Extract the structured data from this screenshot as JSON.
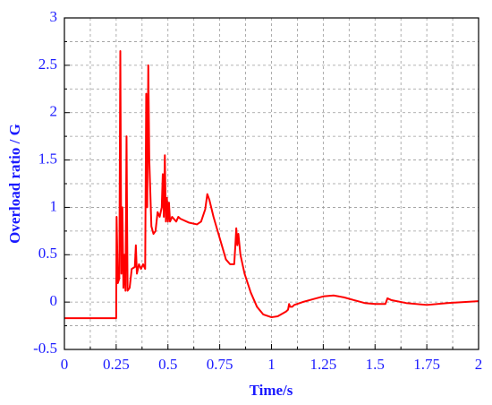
{
  "chart_data": {
    "type": "line",
    "x_label": "Time/s",
    "y_label": "Overload ratio / G",
    "xlim": [
      0,
      2
    ],
    "ylim": [
      -0.5,
      3
    ],
    "xticks": [
      0,
      0.25,
      0.5,
      0.75,
      1,
      1.25,
      1.5,
      1.75,
      2
    ],
    "yticks": [
      -0.5,
      0,
      0.5,
      1,
      1.5,
      2,
      2.5,
      3
    ],
    "grid": true,
    "series": [
      {
        "color": "#ff0000",
        "x": [
          0,
          0.25,
          0.252,
          0.258,
          0.265,
          0.27,
          0.275,
          0.28,
          0.285,
          0.29,
          0.295,
          0.3,
          0.305,
          0.315,
          0.325,
          0.34,
          0.345,
          0.35,
          0.36,
          0.37,
          0.38,
          0.39,
          0.395,
          0.4,
          0.405,
          0.41,
          0.42,
          0.43,
          0.44,
          0.45,
          0.46,
          0.47,
          0.475,
          0.48,
          0.485,
          0.49,
          0.495,
          0.5,
          0.505,
          0.51,
          0.52,
          0.54,
          0.55,
          0.56,
          0.6,
          0.64,
          0.66,
          0.68,
          0.69,
          0.7,
          0.72,
          0.74,
          0.76,
          0.78,
          0.8,
          0.82,
          0.825,
          0.83,
          0.835,
          0.84,
          0.85,
          0.87,
          0.9,
          0.93,
          0.96,
          1.0,
          1.03,
          1.07,
          1.08,
          1.085,
          1.09,
          1.1,
          1.11,
          1.15,
          1.2,
          1.25,
          1.3,
          1.35,
          1.4,
          1.45,
          1.5,
          1.55,
          1.56,
          1.58,
          1.65,
          1.75,
          1.85,
          2.0
        ],
        "values": [
          -0.17,
          -0.17,
          0.9,
          0.2,
          0.25,
          2.65,
          0.3,
          1.0,
          0.15,
          0.5,
          0.12,
          1.75,
          0.12,
          0.15,
          0.35,
          0.37,
          0.6,
          0.3,
          0.4,
          0.35,
          0.4,
          0.35,
          2.2,
          1.0,
          2.5,
          1.5,
          0.8,
          0.72,
          0.75,
          0.95,
          0.9,
          1.0,
          1.35,
          0.9,
          1.55,
          0.85,
          1.1,
          0.85,
          1.05,
          0.85,
          0.9,
          0.85,
          0.9,
          0.88,
          0.84,
          0.82,
          0.85,
          0.98,
          1.14,
          1.08,
          0.9,
          0.75,
          0.6,
          0.45,
          0.4,
          0.4,
          0.58,
          0.78,
          0.6,
          0.72,
          0.5,
          0.3,
          0.1,
          -0.05,
          -0.13,
          -0.16,
          -0.15,
          -0.1,
          -0.08,
          -0.02,
          -0.05,
          -0.05,
          -0.03,
          0.0,
          0.03,
          0.06,
          0.07,
          0.05,
          0.02,
          -0.01,
          -0.02,
          -0.02,
          0.04,
          0.02,
          -0.01,
          -0.03,
          -0.01,
          0.01
        ]
      }
    ]
  }
}
